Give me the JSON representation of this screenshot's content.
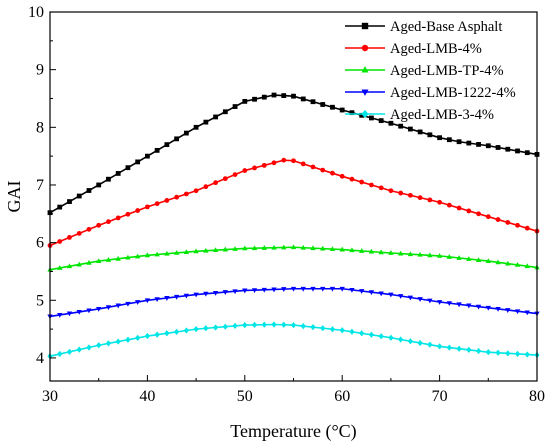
{
  "chart_data": {
    "type": "line",
    "xlabel": "Temperature (°C)",
    "ylabel": "GAI",
    "xlim": [
      30,
      80
    ],
    "ylim": [
      3.6,
      10
    ],
    "xticks": [
      30,
      40,
      50,
      60,
      70,
      80
    ],
    "yticks": [
      4,
      5,
      6,
      7,
      8,
      9,
      10
    ],
    "grid": false,
    "legend_position": "top-right",
    "series": [
      {
        "name": "Aged-Base Asphalt",
        "color": "#000000",
        "marker": "square",
        "x": [
          30,
          35,
          40,
          45,
          50,
          53,
          55,
          60,
          65,
          70,
          72,
          75,
          80
        ],
        "y": [
          6.52,
          7.0,
          7.5,
          8.0,
          8.45,
          8.56,
          8.54,
          8.3,
          8.07,
          7.82,
          7.75,
          7.68,
          7.53
        ]
      },
      {
        "name": "Aged-LMB-4%",
        "color": "#ff0000",
        "marker": "circle",
        "x": [
          30,
          35,
          40,
          45,
          50,
          54,
          55,
          60,
          65,
          70,
          75,
          80
        ],
        "y": [
          5.95,
          6.3,
          6.62,
          6.9,
          7.25,
          7.43,
          7.42,
          7.15,
          6.9,
          6.7,
          6.45,
          6.2
        ]
      },
      {
        "name": "Aged-LMB-TP-4%",
        "color": "#00e600",
        "marker": "triangle-up",
        "x": [
          30,
          35,
          40,
          45,
          50,
          55,
          60,
          65,
          70,
          75,
          80
        ],
        "y": [
          5.53,
          5.68,
          5.78,
          5.85,
          5.9,
          5.92,
          5.88,
          5.82,
          5.77,
          5.68,
          5.57
        ]
      },
      {
        "name": "Aged-LMB-1222-4%",
        "color": "#0000ff",
        "marker": "triangle-down",
        "x": [
          30,
          35,
          40,
          45,
          50,
          55,
          60,
          65,
          70,
          75,
          80
        ],
        "y": [
          4.72,
          4.85,
          5.0,
          5.1,
          5.17,
          5.2,
          5.2,
          5.1,
          4.97,
          4.87,
          4.77
        ]
      },
      {
        "name": "Aged-LMB-3-4%",
        "color": "#00e5e5",
        "marker": "diamond",
        "x": [
          30,
          35,
          40,
          45,
          50,
          53,
          55,
          60,
          65,
          70,
          75,
          80
        ],
        "y": [
          4.03,
          4.22,
          4.38,
          4.5,
          4.57,
          4.58,
          4.57,
          4.48,
          4.35,
          4.2,
          4.1,
          4.05
        ]
      }
    ]
  }
}
